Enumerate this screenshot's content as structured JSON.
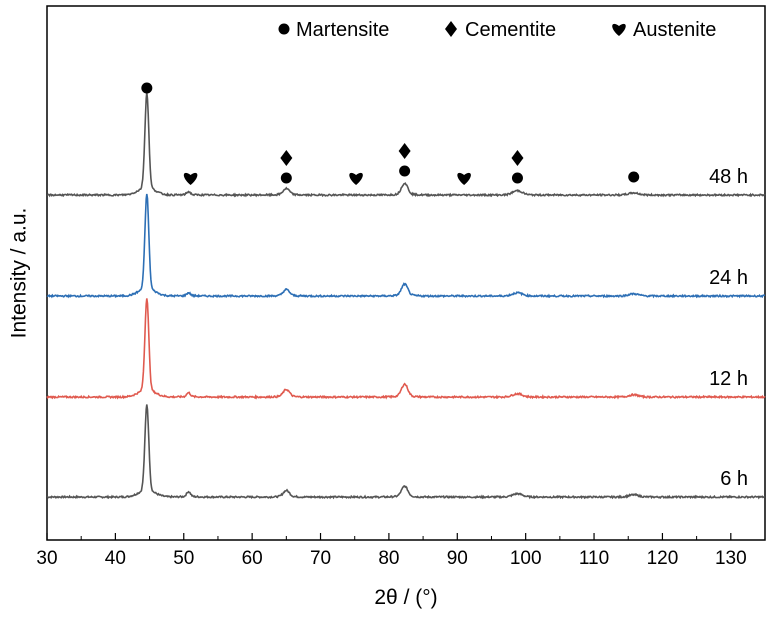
{
  "chart_data": {
    "type": "line",
    "title": "",
    "xlabel": "2θ / (°)",
    "ylabel": "Intensity / a.u.",
    "xlim": [
      30,
      135
    ],
    "x_ticks": [
      30,
      40,
      50,
      60,
      70,
      80,
      90,
      100,
      110,
      120,
      130
    ],
    "y_scale": "arbitrary units, curves vertically offset",
    "grid": false,
    "legend_position": "top-right",
    "legend": [
      {
        "symbol": "●",
        "label": "Martensite"
      },
      {
        "symbol": "♦",
        "label": "Cementite"
      },
      {
        "symbol": "♥",
        "label": "Austenite"
      }
    ],
    "series": [
      {
        "name": "6 h",
        "color": "#555555",
        "offset": 0,
        "peaks": [
          [
            44.6,
            86
          ],
          [
            50.7,
            5
          ],
          [
            65.0,
            6
          ],
          [
            82.3,
            10
          ],
          [
            98.8,
            3
          ],
          [
            115.8,
            2
          ]
        ]
      },
      {
        "name": "12 h",
        "color": "#e05a4f",
        "offset": 1,
        "peaks": [
          [
            44.6,
            92
          ],
          [
            50.7,
            4
          ],
          [
            65.0,
            7
          ],
          [
            82.3,
            12
          ],
          [
            98.8,
            3
          ],
          [
            115.8,
            2
          ]
        ]
      },
      {
        "name": "24 h",
        "color": "#2d6fb5",
        "offset": 2,
        "peaks": [
          [
            44.6,
            95
          ],
          [
            50.7,
            3
          ],
          [
            65.0,
            6
          ],
          [
            82.3,
            11
          ],
          [
            98.8,
            3
          ],
          [
            115.8,
            2
          ]
        ]
      },
      {
        "name": "48 h",
        "color": "#555555",
        "offset": 3,
        "peaks": [
          [
            44.6,
            95
          ],
          [
            50.7,
            3
          ],
          [
            65.0,
            6
          ],
          [
            82.3,
            11
          ],
          [
            98.8,
            4
          ],
          [
            115.8,
            2
          ]
        ]
      }
    ],
    "phase_markers": [
      {
        "x": 44.6,
        "symbols": [
          "●"
        ]
      },
      {
        "x": 51.0,
        "symbols": [
          "♥"
        ]
      },
      {
        "x": 65.0,
        "symbols": [
          "●",
          "♦"
        ]
      },
      {
        "x": 75.2,
        "symbols": [
          "♥"
        ]
      },
      {
        "x": 82.3,
        "symbols": [
          "●",
          "♦"
        ]
      },
      {
        "x": 91.0,
        "symbols": [
          "♥"
        ]
      },
      {
        "x": 98.8,
        "symbols": [
          "●",
          "♦"
        ]
      },
      {
        "x": 115.8,
        "symbols": [
          "●"
        ]
      }
    ]
  }
}
